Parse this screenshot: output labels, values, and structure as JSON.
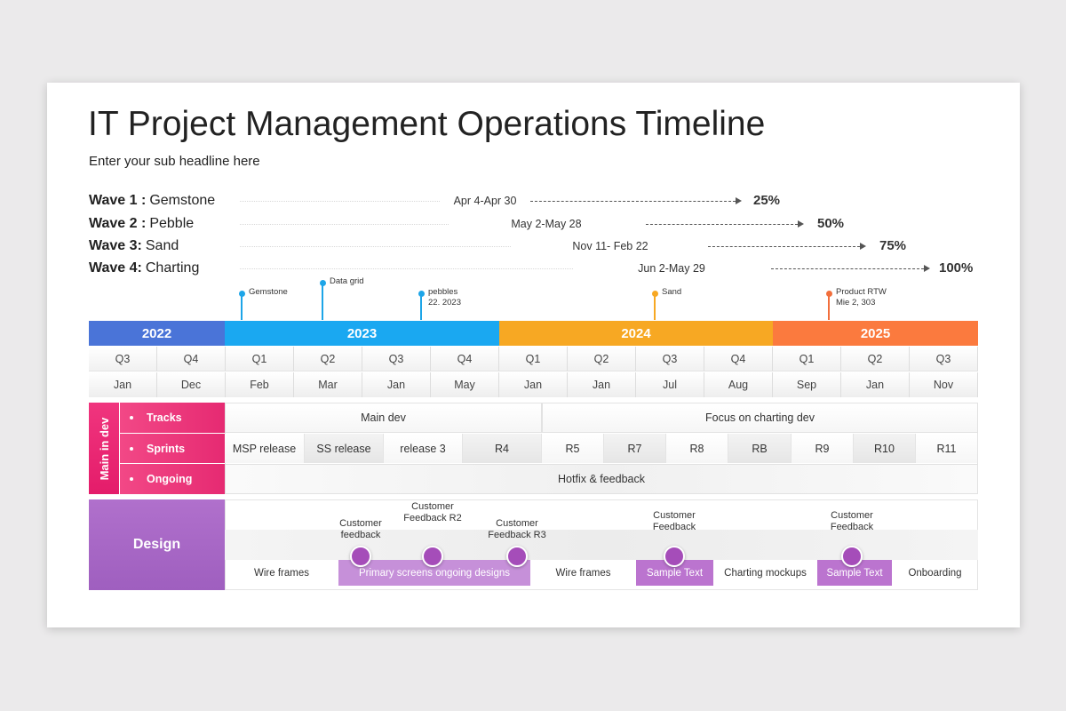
{
  "header": {
    "title": "IT Project Management Operations Timeline",
    "subtitle": "Enter your sub headline here"
  },
  "waves": [
    {
      "label": "Wave 1 :",
      "name": "Gemstone",
      "dates": "Apr 4-Apr 30",
      "percent": "25%"
    },
    {
      "label": "Wave 2 :",
      "name": "Pebble",
      "dates": "May  2-May  28",
      "percent": "50%"
    },
    {
      "label": "Wave 3:",
      "name": "Sand",
      "dates": "Nov 11- Feb 22",
      "percent": "75%"
    },
    {
      "label": "Wave 4:",
      "name": "Charting",
      "dates": "Jun 2-May 29",
      "percent": "100%"
    }
  ],
  "milestones": [
    [
      "Gemstone"
    ],
    [
      "Data grid"
    ],
    [
      "pebbles",
      "22. 2023"
    ],
    [
      "Sand"
    ],
    [
      "Product RTW",
      "Mie 2, 303"
    ]
  ],
  "years": [
    "2022",
    "2023",
    "2024",
    "2025"
  ],
  "quarters": [
    "Q3",
    "Q4",
    "Q1",
    "Q2",
    "Q3",
    "Q4",
    "Q1",
    "Q2",
    "Q3",
    "Q4",
    "Q1",
    "Q2",
    "Q3"
  ],
  "months": [
    "Jan",
    "Dec",
    "Feb",
    "Mar",
    "Jan",
    "May",
    "Jan",
    "Jan",
    "Jul",
    "Aug",
    "Sep",
    "Jan",
    "Nov"
  ],
  "dev": {
    "label": "Main in dev",
    "rows": [
      "Tracks",
      "Sprints",
      "Ongoing"
    ],
    "tracks": [
      "Main dev",
      "Focus on charting dev"
    ],
    "sprints": [
      "MSP release",
      "SS release",
      "release 3",
      "R4",
      "R5",
      "R7",
      "R8",
      "RB",
      "R9",
      "R10",
      "R11"
    ],
    "ongoing": "Hotfix & feedback"
  },
  "design": {
    "label": "Design",
    "feedback": [
      [
        "Customer",
        "feedback"
      ],
      [
        "Customer",
        "Feedback R2"
      ],
      [
        "Customer",
        "Feedback R3"
      ],
      [
        "Customer",
        "Feedback"
      ],
      [
        "Customer",
        "Feedback"
      ]
    ],
    "items": [
      "Wire frames",
      "Primary screens ongoing designs",
      "Wire frames",
      "Sample Text",
      "Charting mockups",
      "Sample Text",
      "Onboarding"
    ]
  }
}
